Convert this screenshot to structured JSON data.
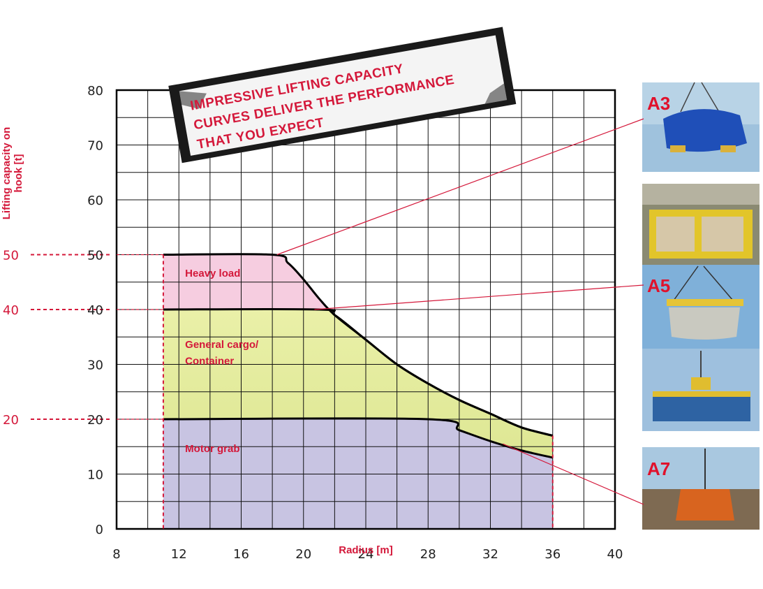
{
  "banner": {
    "lines": [
      "IMPRESSIVE LIFTING CAPACITY",
      "CURVES DELIVER THE PERFORMANCE",
      "THAT YOU EXPECT"
    ]
  },
  "photos": {
    "a3_label": "A3",
    "a5_label": "A5",
    "a7_label": "A7"
  },
  "colors": {
    "accent": "#d4183a",
    "heavy_load_fill": "#f6cde0",
    "general_cargo_fill": "#d8e38a",
    "motor_grab_fill": "#c8c4e2",
    "grid": "#111111"
  },
  "chart_data": {
    "type": "area",
    "title": "",
    "xlabel": "Radius [m]",
    "ylabel": "Lifting capacity on hook [t]",
    "xlim": [
      8,
      40
    ],
    "ylim": [
      0,
      80
    ],
    "x_ticks": [
      "8",
      "12",
      "16",
      "20",
      "24",
      "28",
      "32",
      "36",
      "40"
    ],
    "y_ticks": [
      "0",
      "10",
      "20",
      "30",
      "40",
      "50",
      "60",
      "70",
      "80"
    ],
    "grid": true,
    "x_minor_step": 2,
    "y_minor_step": 5,
    "reference_lines": [
      {
        "label": "50",
        "y": 50
      },
      {
        "label": "40",
        "y": 40
      },
      {
        "label": "20",
        "y": 20
      }
    ],
    "radius_min": 11,
    "radius_max": 36,
    "series": [
      {
        "name": "Heavy load",
        "x": [
          11,
          18,
          19,
          20,
          21,
          22,
          24,
          26,
          28,
          30,
          32,
          34,
          36
        ],
        "y": [
          50,
          50,
          48.5,
          45.5,
          42,
          39,
          34.5,
          30,
          26.5,
          23.5,
          21,
          18.5,
          17
        ]
      },
      {
        "name": "General cargo/ Container",
        "x": [
          11,
          21,
          22,
          24,
          26,
          28,
          30,
          32,
          34,
          36
        ],
        "y": [
          40,
          40,
          39,
          34.5,
          30,
          26.5,
          23.5,
          21,
          18.5,
          17
        ]
      },
      {
        "name": "Motor grab",
        "x": [
          11,
          28,
          30,
          32,
          34,
          36
        ],
        "y": [
          20,
          20,
          18,
          16,
          14.3,
          13
        ]
      }
    ],
    "region_labels": [
      {
        "text": "Heavy load",
        "x": 12.4,
        "y": 46
      },
      {
        "text": "General cargo/",
        "x": 12.4,
        "y": 33
      },
      {
        "text": "Container",
        "x": 12.4,
        "y": 30
      },
      {
        "text": "Motor grab",
        "x": 12.4,
        "y": 14
      }
    ],
    "callouts": [
      {
        "label": "A3",
        "from": [
          18.3,
          50
        ]
      },
      {
        "label": "A5",
        "from": [
          20.7,
          40
        ]
      },
      {
        "label": "A7",
        "from": [
          32.8,
          15.5
        ]
      }
    ]
  }
}
